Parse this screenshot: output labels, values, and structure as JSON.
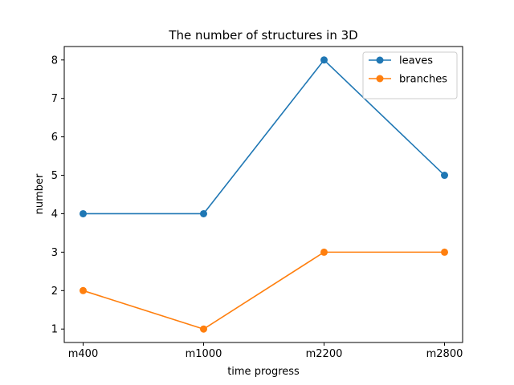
{
  "chart_data": {
    "type": "line",
    "title": "The number of structures in 3D",
    "xlabel": "time progress",
    "ylabel": "number",
    "categories": [
      "m400",
      "m1000",
      "m2200",
      "m2800"
    ],
    "yticks": [
      1,
      2,
      3,
      4,
      5,
      6,
      7,
      8
    ],
    "ylim": [
      0.65,
      8.35
    ],
    "grid": false,
    "legend_position": "top-right",
    "series": [
      {
        "name": "leaves",
        "values": [
          4,
          4,
          8,
          5
        ],
        "color": "#1f77b4",
        "marker": "circle"
      },
      {
        "name": "branches",
        "values": [
          2,
          1,
          3,
          3
        ],
        "color": "#ff7f0e",
        "marker": "circle"
      }
    ]
  }
}
